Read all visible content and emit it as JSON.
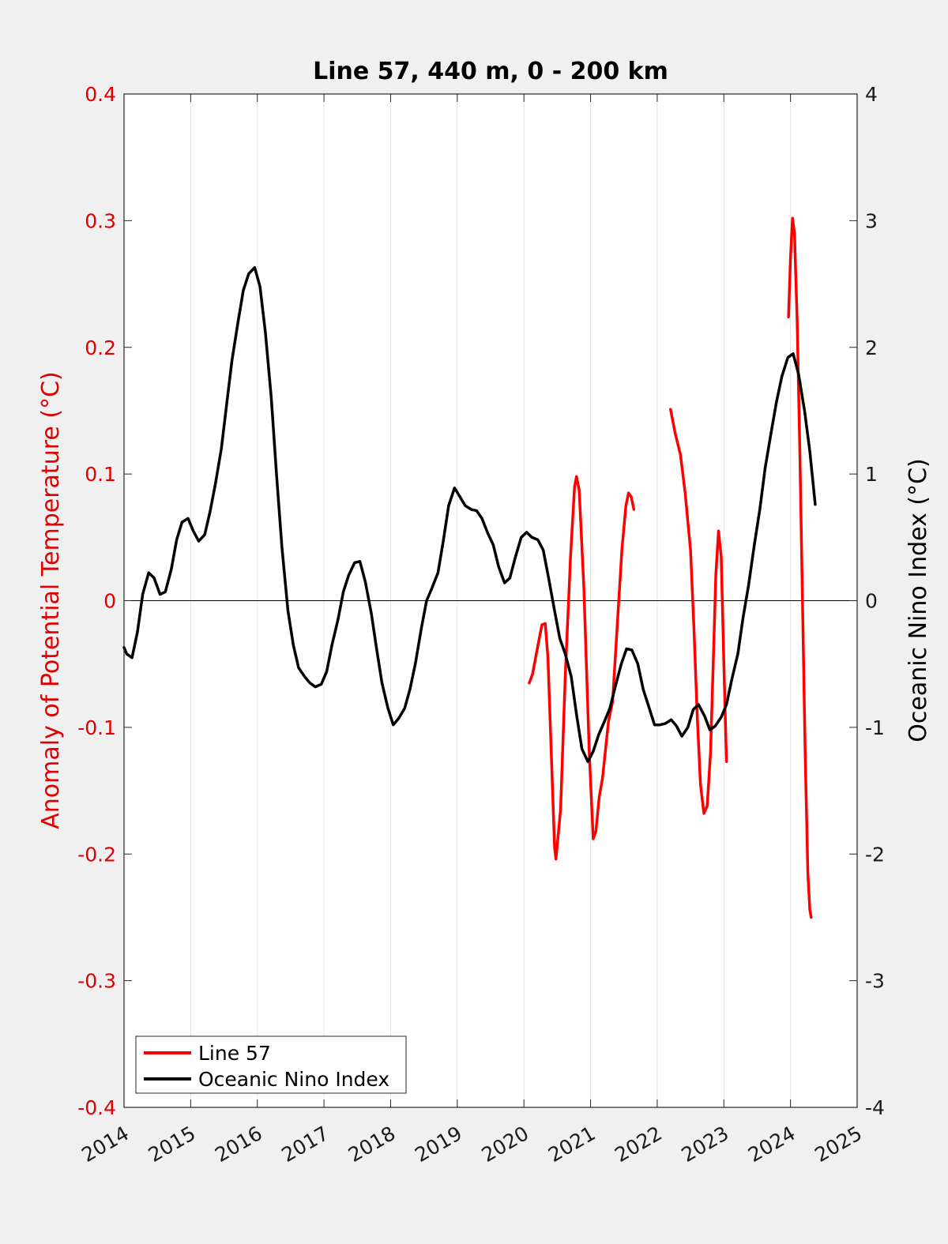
{
  "chart_data": {
    "type": "line",
    "title": "Line 57, 440 m, 0 - 200 km",
    "ylabel_left": "Anomaly of Potential Temperature (°C)",
    "ylabel_right": "Oceanic Nino Index (°C)",
    "xlim": [
      2014,
      2025
    ],
    "ylim_left": [
      -0.4,
      0.4
    ],
    "ylim_right": [
      -4,
      4
    ],
    "x_ticks": [
      "2014",
      "2015",
      "2016",
      "2017",
      "2018",
      "2019",
      "2020",
      "2021",
      "2022",
      "2023",
      "2024",
      "2025"
    ],
    "y_left_ticks": [
      "0.4",
      "0.3",
      "0.2",
      "0.1",
      "0",
      "-0.1",
      "-0.2",
      "-0.3",
      "-0.4"
    ],
    "y_right_ticks": [
      "4",
      "3",
      "2",
      "1",
      "0",
      "-1",
      "-2",
      "-3",
      "-4"
    ],
    "grid": "vertical",
    "zero_line": true,
    "legend_position": "bottom-left",
    "colors": {
      "line57": "#ff0000",
      "oni": "#000000",
      "left_axis": "#e00000"
    },
    "series": [
      {
        "name": "Line 57",
        "axis": "left",
        "segments": [
          [
            [
              2020.08,
              -0.065
            ],
            [
              2020.13,
              -0.058
            ],
            [
              2020.2,
              -0.038
            ],
            [
              2020.27,
              -0.019
            ],
            [
              2020.32,
              -0.018
            ],
            [
              2020.36,
              -0.045
            ],
            [
              2020.41,
              -0.12
            ],
            [
              2020.46,
              -0.195
            ],
            [
              2020.48,
              -0.204
            ],
            [
              2020.55,
              -0.165
            ],
            [
              2020.62,
              -0.06
            ],
            [
              2020.7,
              0.035
            ],
            [
              2020.76,
              0.09
            ],
            [
              2020.79,
              0.098
            ],
            [
              2020.83,
              0.087
            ],
            [
              2020.9,
              0.01
            ],
            [
              2020.98,
              -0.12
            ],
            [
              2021.04,
              -0.188
            ],
            [
              2021.08,
              -0.182
            ],
            [
              2021.13,
              -0.155
            ],
            [
              2021.18,
              -0.14
            ],
            [
              2021.27,
              -0.095
            ],
            [
              2021.33,
              -0.08
            ],
            [
              2021.4,
              -0.02
            ],
            [
              2021.47,
              0.04
            ],
            [
              2021.53,
              0.075
            ],
            [
              2021.57,
              0.085
            ],
            [
              2021.61,
              0.082
            ],
            [
              2021.65,
              0.072
            ]
          ],
          [
            [
              2022.2,
              0.151
            ],
            [
              2022.27,
              0.132
            ],
            [
              2022.35,
              0.115
            ],
            [
              2022.42,
              0.085
            ],
            [
              2022.5,
              0.04
            ],
            [
              2022.55,
              -0.02
            ],
            [
              2022.6,
              -0.09
            ],
            [
              2022.65,
              -0.145
            ],
            [
              2022.7,
              -0.168
            ],
            [
              2022.75,
              -0.162
            ],
            [
              2022.8,
              -0.12
            ],
            [
              2022.84,
              -0.05
            ],
            [
              2022.88,
              0.02
            ],
            [
              2022.92,
              0.055
            ],
            [
              2022.96,
              0.035
            ],
            [
              2023.0,
              -0.05
            ],
            [
              2023.04,
              -0.127
            ]
          ],
          [
            [
              2023.97,
              0.224
            ],
            [
              2024.0,
              0.27
            ],
            [
              2024.03,
              0.302
            ],
            [
              2024.06,
              0.29
            ],
            [
              2024.1,
              0.22
            ],
            [
              2024.14,
              0.12
            ],
            [
              2024.18,
              0.0
            ],
            [
              2024.22,
              -0.12
            ],
            [
              2024.26,
              -0.215
            ],
            [
              2024.29,
              -0.244
            ],
            [
              2024.31,
              -0.25
            ]
          ]
        ]
      },
      {
        "name": "Oceanic Nino Index",
        "axis": "right",
        "segments": [
          [
            [
              2014.0,
              -0.37
            ],
            [
              2014.04,
              -0.42
            ],
            [
              2014.12,
              -0.45
            ],
            [
              2014.2,
              -0.25
            ],
            [
              2014.28,
              0.05
            ],
            [
              2014.37,
              0.22
            ],
            [
              2014.45,
              0.18
            ],
            [
              2014.54,
              0.05
            ],
            [
              2014.62,
              0.07
            ],
            [
              2014.71,
              0.25
            ],
            [
              2014.79,
              0.48
            ],
            [
              2014.87,
              0.62
            ],
            [
              2014.96,
              0.65
            ],
            [
              2015.04,
              0.55
            ],
            [
              2015.12,
              0.47
            ],
            [
              2015.21,
              0.52
            ],
            [
              2015.29,
              0.7
            ],
            [
              2015.37,
              0.92
            ],
            [
              2015.46,
              1.2
            ],
            [
              2015.54,
              1.55
            ],
            [
              2015.62,
              1.9
            ],
            [
              2015.71,
              2.2
            ],
            [
              2015.79,
              2.45
            ],
            [
              2015.87,
              2.58
            ],
            [
              2015.96,
              2.63
            ],
            [
              2016.04,
              2.48
            ],
            [
              2016.12,
              2.12
            ],
            [
              2016.21,
              1.6
            ],
            [
              2016.29,
              0.98
            ],
            [
              2016.37,
              0.42
            ],
            [
              2016.46,
              -0.08
            ],
            [
              2016.54,
              -0.35
            ],
            [
              2016.62,
              -0.53
            ],
            [
              2016.71,
              -0.6
            ],
            [
              2016.79,
              -0.65
            ],
            [
              2016.87,
              -0.68
            ],
            [
              2016.96,
              -0.66
            ],
            [
              2017.04,
              -0.56
            ],
            [
              2017.12,
              -0.35
            ],
            [
              2017.21,
              -0.15
            ],
            [
              2017.29,
              0.07
            ],
            [
              2017.37,
              0.2
            ],
            [
              2017.46,
              0.3
            ],
            [
              2017.54,
              0.31
            ],
            [
              2017.62,
              0.15
            ],
            [
              2017.71,
              -0.1
            ],
            [
              2017.79,
              -0.38
            ],
            [
              2017.87,
              -0.65
            ],
            [
              2017.96,
              -0.85
            ],
            [
              2018.04,
              -0.98
            ],
            [
              2018.12,
              -0.93
            ],
            [
              2018.21,
              -0.85
            ],
            [
              2018.29,
              -0.7
            ],
            [
              2018.37,
              -0.5
            ],
            [
              2018.46,
              -0.22
            ],
            [
              2018.54,
              0.0
            ],
            [
              2018.62,
              0.1
            ],
            [
              2018.71,
              0.22
            ],
            [
              2018.79,
              0.47
            ],
            [
              2018.87,
              0.75
            ],
            [
              2018.96,
              0.89
            ],
            [
              2019.04,
              0.82
            ],
            [
              2019.12,
              0.75
            ],
            [
              2019.21,
              0.72
            ],
            [
              2019.29,
              0.71
            ],
            [
              2019.37,
              0.65
            ],
            [
              2019.46,
              0.53
            ],
            [
              2019.54,
              0.44
            ],
            [
              2019.62,
              0.27
            ],
            [
              2019.71,
              0.14
            ],
            [
              2019.79,
              0.18
            ],
            [
              2019.87,
              0.34
            ],
            [
              2019.96,
              0.5
            ],
            [
              2020.04,
              0.54
            ],
            [
              2020.12,
              0.5
            ],
            [
              2020.21,
              0.48
            ],
            [
              2020.29,
              0.4
            ],
            [
              2020.37,
              0.18
            ],
            [
              2020.46,
              -0.08
            ],
            [
              2020.54,
              -0.3
            ],
            [
              2020.62,
              -0.42
            ],
            [
              2020.71,
              -0.6
            ],
            [
              2020.79,
              -0.9
            ],
            [
              2020.87,
              -1.17
            ],
            [
              2020.96,
              -1.27
            ],
            [
              2021.04,
              -1.19
            ],
            [
              2021.12,
              -1.06
            ],
            [
              2021.21,
              -0.95
            ],
            [
              2021.29,
              -0.85
            ],
            [
              2021.37,
              -0.68
            ],
            [
              2021.46,
              -0.5
            ],
            [
              2021.54,
              -0.38
            ],
            [
              2021.62,
              -0.39
            ],
            [
              2021.71,
              -0.5
            ],
            [
              2021.79,
              -0.7
            ],
            [
              2021.87,
              -0.83
            ],
            [
              2021.96,
              -0.98
            ],
            [
              2022.04,
              -0.98
            ],
            [
              2022.12,
              -0.97
            ],
            [
              2022.21,
              -0.94
            ],
            [
              2022.29,
              -0.99
            ],
            [
              2022.37,
              -1.07
            ],
            [
              2022.46,
              -1.0
            ],
            [
              2022.54,
              -0.86
            ],
            [
              2022.62,
              -0.82
            ],
            [
              2022.71,
              -0.91
            ],
            [
              2022.79,
              -1.02
            ],
            [
              2022.87,
              -0.99
            ],
            [
              2022.96,
              -0.92
            ],
            [
              2023.04,
              -0.82
            ],
            [
              2023.12,
              -0.62
            ],
            [
              2023.21,
              -0.42
            ],
            [
              2023.29,
              -0.13
            ],
            [
              2023.37,
              0.12
            ],
            [
              2023.46,
              0.45
            ],
            [
              2023.54,
              0.72
            ],
            [
              2023.62,
              1.05
            ],
            [
              2023.71,
              1.33
            ],
            [
              2023.79,
              1.57
            ],
            [
              2023.87,
              1.77
            ],
            [
              2023.96,
              1.92
            ],
            [
              2024.04,
              1.95
            ],
            [
              2024.12,
              1.79
            ],
            [
              2024.21,
              1.5
            ],
            [
              2024.29,
              1.18
            ],
            [
              2024.37,
              0.76
            ]
          ]
        ]
      }
    ]
  }
}
